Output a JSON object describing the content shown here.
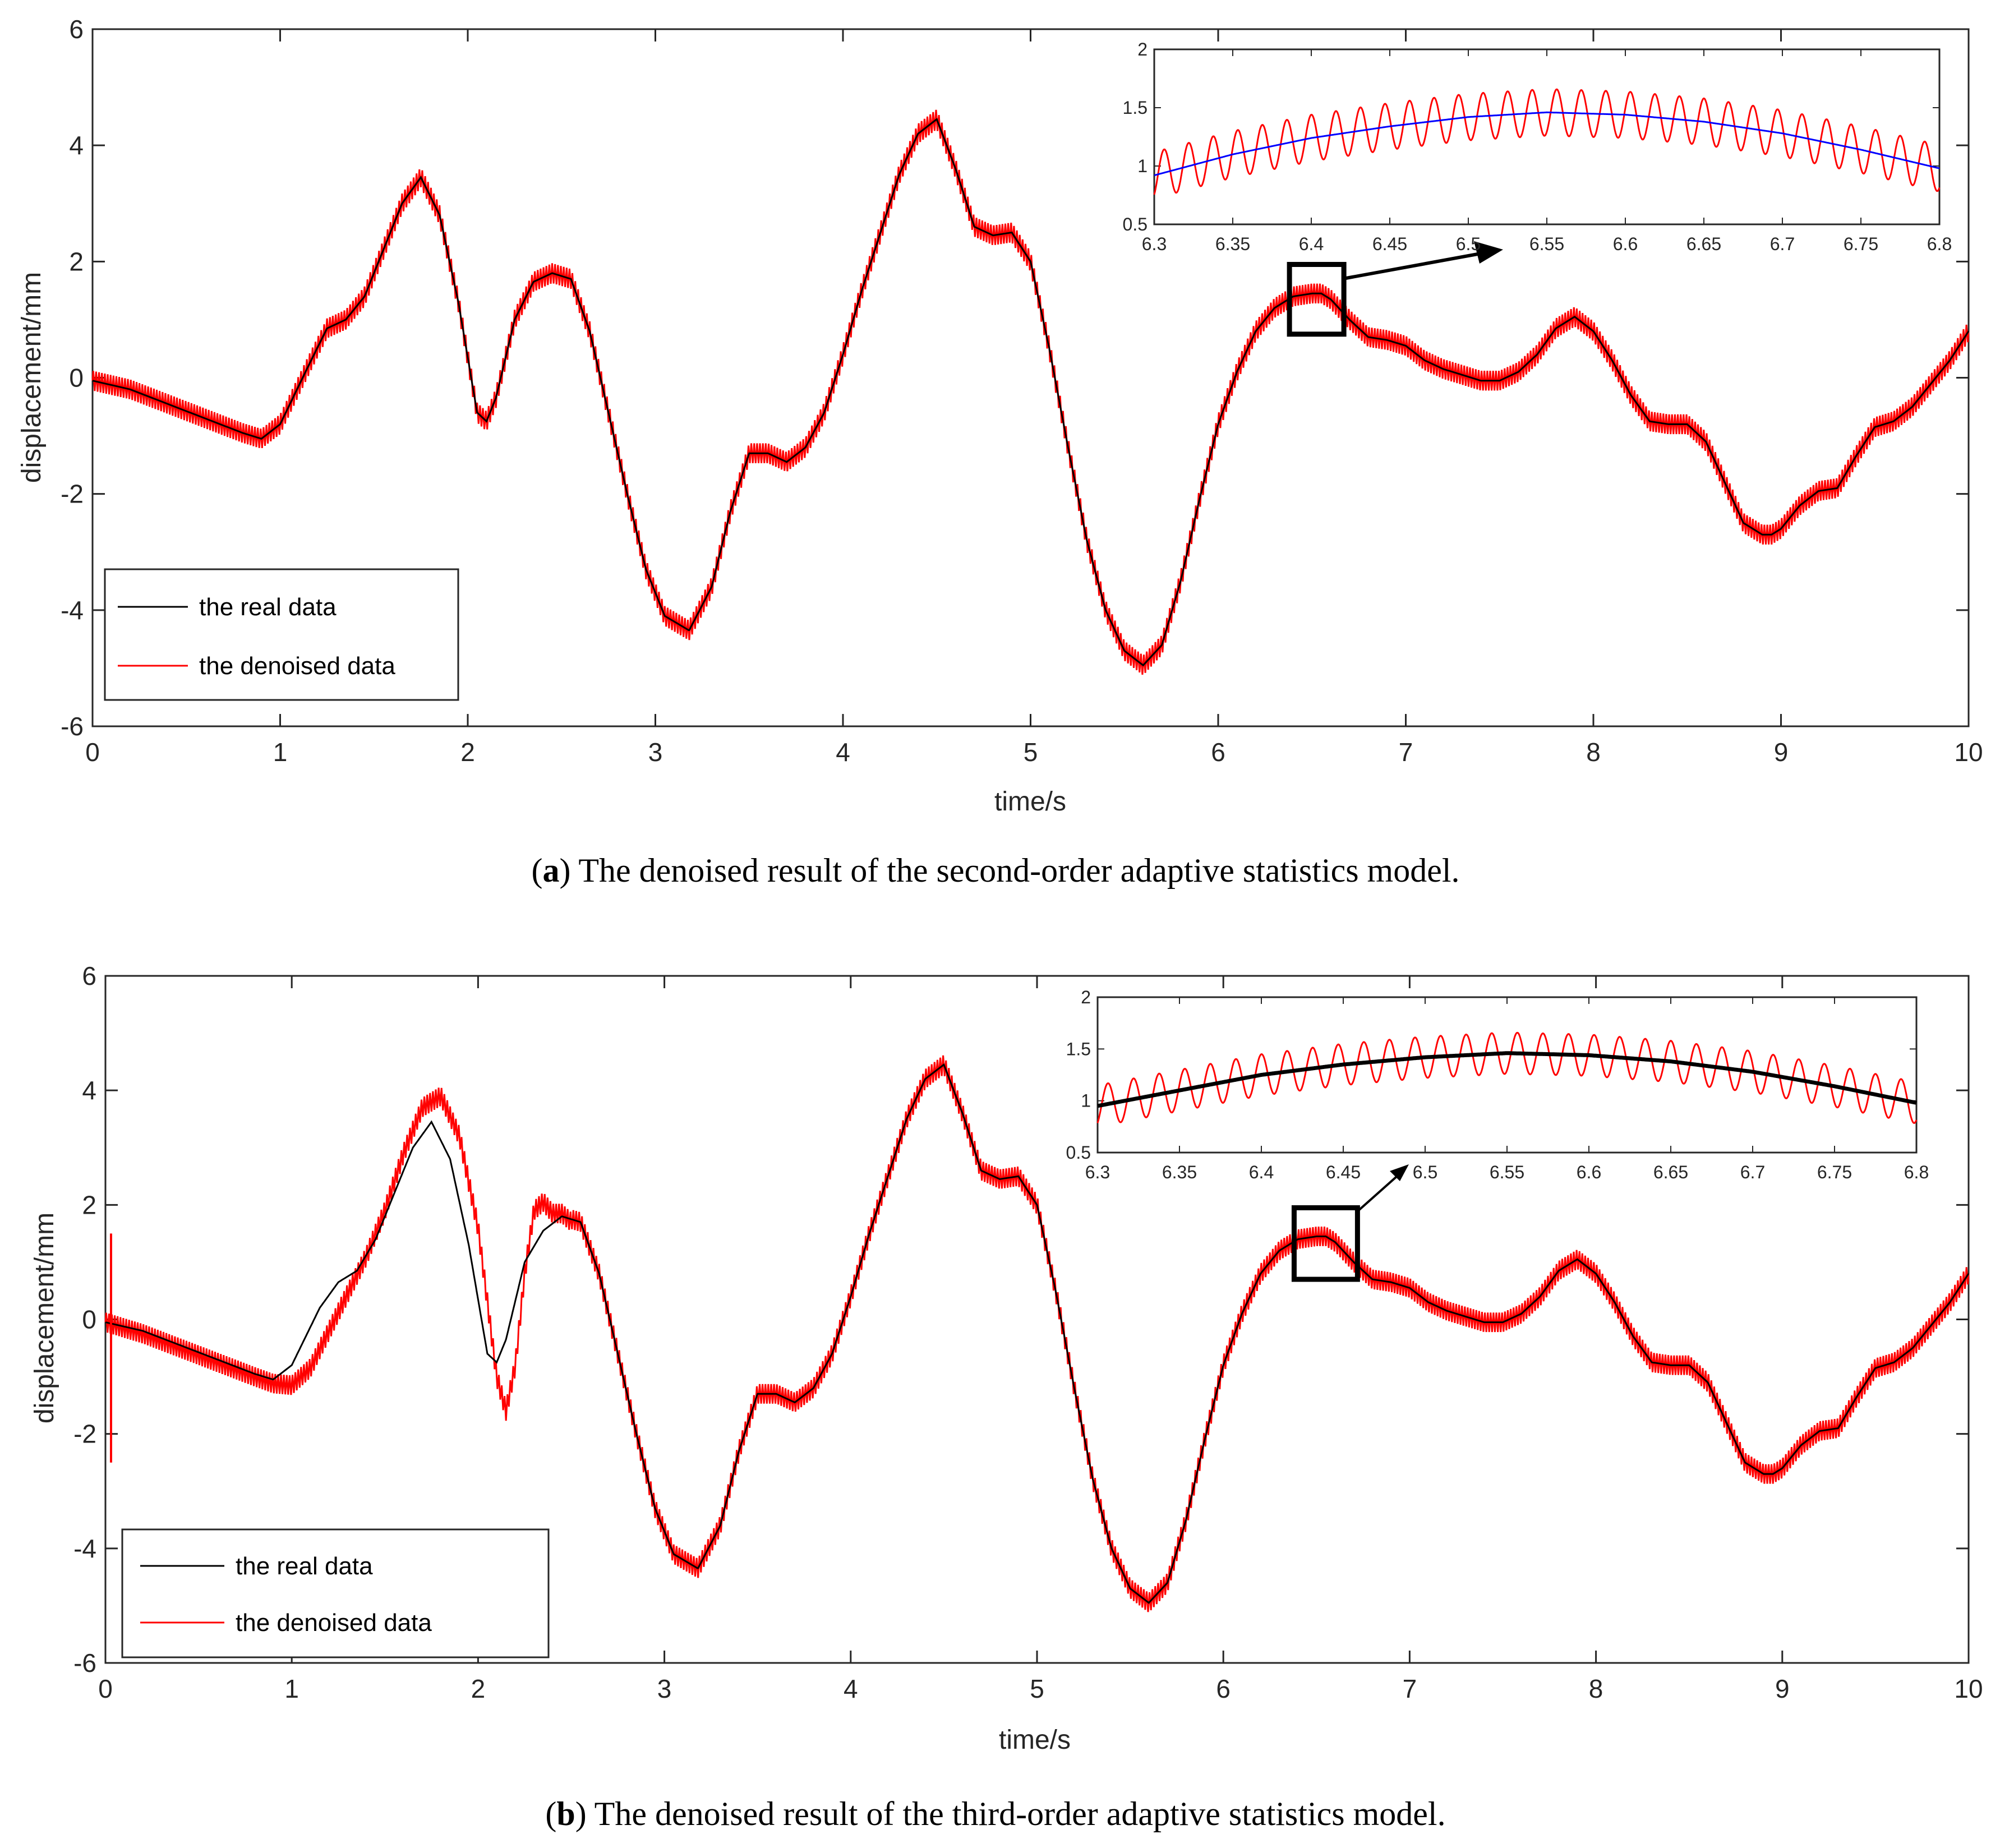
{
  "colors": {
    "real": "#000000",
    "denoised": "#ff0000",
    "inset_real_a": "#0000ff",
    "inset_real_b": "#000000",
    "axis": "#262626",
    "box": "#000000"
  },
  "chart_data": [
    {
      "id": "a",
      "type": "line",
      "caption_letter": "a",
      "caption_text": " The denoised result of the second-order adaptive statistics model.",
      "xlabel": "time/s",
      "ylabel": "displacement/mm",
      "xlim": [
        0,
        10
      ],
      "ylim": [
        -6,
        6
      ],
      "xticks": [
        "0",
        "1",
        "2",
        "3",
        "4",
        "5",
        "6",
        "7",
        "8",
        "9",
        "10"
      ],
      "yticks": [
        "-6",
        "-4",
        "-2",
        "0",
        "2",
        "4",
        "6"
      ],
      "legend": {
        "position": "bottom-left",
        "entries": [
          "the real data",
          "the denoised data"
        ]
      },
      "series": [
        {
          "name": "the real data",
          "x": [
            0,
            0.2,
            0.4,
            0.6,
            0.8,
            0.9,
            1.0,
            1.15,
            1.25,
            1.35,
            1.45,
            1.55,
            1.65,
            1.75,
            1.85,
            1.95,
            2.05,
            2.1,
            2.15,
            2.25,
            2.35,
            2.45,
            2.55,
            2.65,
            2.75,
            2.85,
            2.95,
            3.05,
            3.18,
            3.3,
            3.4,
            3.5,
            3.6,
            3.7,
            3.8,
            3.9,
            4.0,
            4.1,
            4.2,
            4.3,
            4.4,
            4.5,
            4.6,
            4.7,
            4.8,
            4.9,
            5.0,
            5.1,
            5.2,
            5.3,
            5.4,
            5.5,
            5.6,
            5.7,
            5.8,
            5.9,
            6.0,
            6.1,
            6.2,
            6.3,
            6.4,
            6.5,
            6.55,
            6.6,
            6.7,
            6.8,
            6.9,
            7.0,
            7.1,
            7.2,
            7.3,
            7.4,
            7.5,
            7.6,
            7.7,
            7.8,
            7.9,
            8.0,
            8.1,
            8.2,
            8.3,
            8.4,
            8.5,
            8.6,
            8.7,
            8.8,
            8.9,
            8.95,
            9.0,
            9.1,
            9.2,
            9.3,
            9.4,
            9.5,
            9.6,
            9.7,
            9.8,
            9.9,
            10.0
          ],
          "y": [
            -0.05,
            -0.2,
            -0.45,
            -0.7,
            -0.95,
            -1.05,
            -0.8,
            0.2,
            0.85,
            1.0,
            1.4,
            2.2,
            3.0,
            3.45,
            2.8,
            1.3,
            -0.6,
            -0.75,
            -0.35,
            1.0,
            1.65,
            1.8,
            1.7,
            0.8,
            -0.6,
            -2.0,
            -3.3,
            -4.1,
            -4.35,
            -3.6,
            -2.3,
            -1.3,
            -1.3,
            -1.45,
            -1.2,
            -0.6,
            0.4,
            1.5,
            2.5,
            3.5,
            4.2,
            4.45,
            3.6,
            2.6,
            2.45,
            2.5,
            2.0,
            0.5,
            -1.2,
            -2.8,
            -4.0,
            -4.7,
            -4.95,
            -4.6,
            -3.5,
            -2.1,
            -0.8,
            0.1,
            0.8,
            1.2,
            1.4,
            1.45,
            1.45,
            1.35,
            1.0,
            0.7,
            0.65,
            0.55,
            0.3,
            0.15,
            0.05,
            -0.05,
            -0.05,
            0.1,
            0.4,
            0.85,
            1.05,
            0.8,
            0.3,
            -0.3,
            -0.75,
            -0.8,
            -0.8,
            -1.1,
            -1.8,
            -2.5,
            -2.7,
            -2.7,
            -2.6,
            -2.2,
            -1.95,
            -1.9,
            -1.35,
            -0.85,
            -0.75,
            -0.5,
            -0.1,
            0.3,
            0.8
          ]
        },
        {
          "name": "the denoised data",
          "noise_amplitude": 0.17,
          "noise_frequency_hz": 65
        }
      ],
      "zoom_box": {
        "x": [
          6.38,
          6.67
        ],
        "y": [
          0.75,
          1.95
        ]
      },
      "inset": {
        "xlim": [
          6.3,
          6.8
        ],
        "ylim": [
          0.5,
          2
        ],
        "xticks": [
          "6.3",
          "6.35",
          "6.4",
          "6.45",
          "6.5",
          "6.55",
          "6.6",
          "6.65",
          "6.7",
          "6.75",
          "6.8"
        ],
        "yticks": [
          "0.5",
          "1",
          "1.5",
          "2"
        ],
        "real_curve": {
          "x": [
            6.3,
            6.35,
            6.4,
            6.45,
            6.5,
            6.55,
            6.6,
            6.65,
            6.7,
            6.75,
            6.8
          ],
          "y": [
            0.92,
            1.1,
            1.24,
            1.34,
            1.42,
            1.46,
            1.44,
            1.38,
            1.28,
            1.14,
            0.98
          ]
        },
        "oscillation": {
          "amplitude": 0.2,
          "cycles": 32
        }
      }
    },
    {
      "id": "b",
      "type": "line",
      "caption_letter": "b",
      "caption_text": " The denoised result of the third-order adaptive statistics model.",
      "xlabel": "time/s",
      "ylabel": "displacement/mm",
      "xlim": [
        0,
        10
      ],
      "ylim": [
        -6,
        6
      ],
      "xticks": [
        "0",
        "1",
        "2",
        "3",
        "4",
        "5",
        "6",
        "7",
        "8",
        "9",
        "10"
      ],
      "yticks": [
        "-6",
        "-4",
        "-2",
        "0",
        "2",
        "4",
        "6"
      ],
      "legend": {
        "position": "bottom-left",
        "entries": [
          "the real data",
          "the denoised data"
        ]
      },
      "series": [
        {
          "name": "the real data",
          "x": [
            0,
            0.2,
            0.4,
            0.6,
            0.8,
            0.9,
            1.0,
            1.15,
            1.25,
            1.35,
            1.45,
            1.55,
            1.65,
            1.75,
            1.85,
            1.95,
            2.05,
            2.1,
            2.15,
            2.25,
            2.35,
            2.45,
            2.55,
            2.65,
            2.75,
            2.85,
            2.95,
            3.05,
            3.18,
            3.3,
            3.4,
            3.5,
            3.6,
            3.7,
            3.8,
            3.9,
            4.0,
            4.1,
            4.2,
            4.3,
            4.4,
            4.5,
            4.6,
            4.7,
            4.8,
            4.9,
            5.0,
            5.1,
            5.2,
            5.3,
            5.4,
            5.5,
            5.6,
            5.7,
            5.8,
            5.9,
            6.0,
            6.1,
            6.2,
            6.3,
            6.4,
            6.5,
            6.55,
            6.6,
            6.7,
            6.8,
            6.9,
            7.0,
            7.1,
            7.2,
            7.3,
            7.4,
            7.5,
            7.6,
            7.7,
            7.8,
            7.9,
            8.0,
            8.1,
            8.2,
            8.3,
            8.4,
            8.5,
            8.6,
            8.7,
            8.8,
            8.9,
            8.95,
            9.0,
            9.1,
            9.2,
            9.3,
            9.4,
            9.5,
            9.6,
            9.7,
            9.8,
            9.9,
            10.0
          ],
          "y": [
            -0.05,
            -0.2,
            -0.45,
            -0.7,
            -0.95,
            -1.05,
            -0.8,
            0.2,
            0.65,
            0.85,
            1.4,
            2.2,
            3.0,
            3.45,
            2.8,
            1.3,
            -0.6,
            -0.75,
            -0.35,
            1.0,
            1.55,
            1.8,
            1.7,
            0.8,
            -0.6,
            -2.0,
            -3.3,
            -4.1,
            -4.35,
            -3.6,
            -2.3,
            -1.3,
            -1.3,
            -1.45,
            -1.2,
            -0.6,
            0.4,
            1.5,
            2.5,
            3.5,
            4.2,
            4.45,
            3.6,
            2.6,
            2.45,
            2.5,
            2.0,
            0.5,
            -1.2,
            -2.8,
            -4.0,
            -4.7,
            -4.95,
            -4.6,
            -3.5,
            -2.1,
            -0.8,
            0.1,
            0.8,
            1.2,
            1.4,
            1.45,
            1.45,
            1.35,
            1.0,
            0.7,
            0.65,
            0.55,
            0.3,
            0.15,
            0.05,
            -0.05,
            -0.05,
            0.1,
            0.4,
            0.85,
            1.05,
            0.8,
            0.3,
            -0.3,
            -0.75,
            -0.8,
            -0.8,
            -1.1,
            -1.8,
            -2.5,
            -2.7,
            -2.7,
            -2.6,
            -2.2,
            -1.95,
            -1.9,
            -1.35,
            -0.85,
            -0.75,
            -0.5,
            -0.1,
            0.3,
            0.8
          ]
        },
        {
          "name": "the denoised data",
          "noise_amplitude": 0.17,
          "noise_frequency_hz": 65,
          "early_lag": {
            "x": [
              0,
              0.2,
              0.4,
              0.6,
              0.8,
              0.9,
              1.0,
              1.1,
              1.2,
              1.3,
              1.4,
              1.5,
              1.6,
              1.7,
              1.8,
              1.9,
              2.0,
              2.05,
              2.1,
              2.15,
              2.2,
              2.25,
              2.3,
              2.35,
              2.4,
              2.45,
              2.5
            ],
            "y": [
              -0.05,
              -0.25,
              -0.5,
              -0.75,
              -1.0,
              -1.12,
              -1.15,
              -0.85,
              -0.2,
              0.45,
              1.1,
              1.9,
              2.9,
              3.7,
              3.9,
              3.2,
              1.6,
              0.3,
              -1.0,
              -1.6,
              -0.8,
              0.8,
              1.9,
              2.05,
              1.85,
              1.85,
              1.7
            ],
            "spike": {
              "x": 0.03,
              "y_min": -2.5,
              "y_max": 1.5
            }
          }
        }
      ],
      "zoom_box": {
        "x": [
          6.38,
          6.72
        ],
        "y": [
          0.7,
          1.95
        ]
      },
      "inset": {
        "xlim": [
          6.3,
          6.8
        ],
        "ylim": [
          0.5,
          2
        ],
        "xticks": [
          "6.3",
          "6.35",
          "6.4",
          "6.45",
          "6.5",
          "6.55",
          "6.6",
          "6.65",
          "6.7",
          "6.75",
          "6.8"
        ],
        "yticks": [
          "0.5",
          "1",
          "1.5",
          "2"
        ],
        "real_curve": {
          "x": [
            6.3,
            6.35,
            6.4,
            6.45,
            6.5,
            6.55,
            6.6,
            6.65,
            6.7,
            6.75,
            6.8
          ],
          "y": [
            0.95,
            1.1,
            1.25,
            1.35,
            1.42,
            1.46,
            1.44,
            1.38,
            1.28,
            1.14,
            0.98
          ]
        },
        "oscillation": {
          "amplitude": 0.2,
          "cycles": 32
        }
      }
    }
  ]
}
